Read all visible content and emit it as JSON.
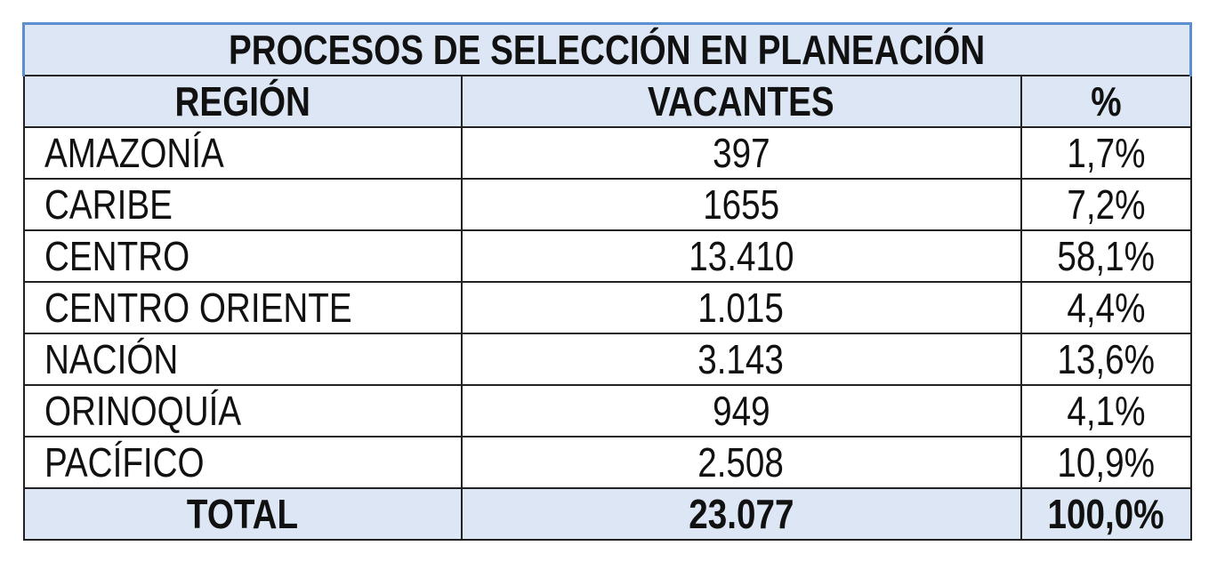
{
  "table": {
    "title": "PROCESOS DE SELECCIÓN EN PLANEACIÓN",
    "header": [
      "REGIÓN",
      "VACANTES",
      "%"
    ],
    "rows": [
      [
        "AMAZONÍA",
        "397",
        "1,7%"
      ],
      [
        "CARIBE",
        "1655",
        "7,2%"
      ],
      [
        "CENTRO",
        "13.410",
        "58,1%"
      ],
      [
        "CENTRO ORIENTE",
        "1.015",
        "4,4%"
      ],
      [
        "NACIÓN",
        "3.143",
        "13,6%"
      ],
      [
        "ORINOQUÍA",
        "949",
        "4,1%"
      ],
      [
        "PACÍFICO",
        "2.508",
        "10,9%"
      ]
    ],
    "total": [
      "TOTAL",
      "23.077",
      "100,0%"
    ]
  }
}
